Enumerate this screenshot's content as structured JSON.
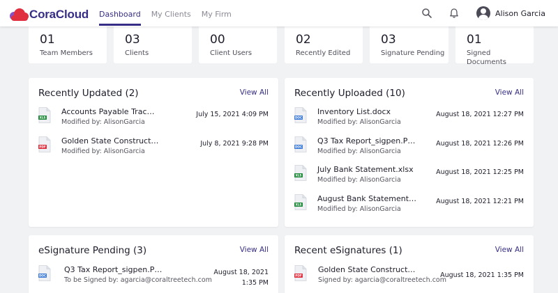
{
  "header": {
    "brand": "CoraCloud",
    "nav": [
      "Dashboard",
      "My Clients",
      "My Firm"
    ],
    "user_name": "Alison Garcia"
  },
  "stats": [
    {
      "value": "01",
      "label": "Team Members"
    },
    {
      "value": "03",
      "label": "Clients"
    },
    {
      "value": "00",
      "label": "Client Users"
    },
    {
      "value": "02",
      "label": "Recently Edited"
    },
    {
      "value": "03",
      "label": "Signature Pending"
    },
    {
      "value": "01",
      "label": "Signed Documents"
    }
  ],
  "recently_updated": {
    "title": "Recently Updated (2)",
    "view_all": "View All",
    "items": [
      {
        "name": "Accounts Payable Trac…",
        "sub": "Modified by: AlisonGarcia",
        "date": "July 15, 2021 4:09 PM",
        "type": "XLS"
      },
      {
        "name": "Golden State Construct…",
        "sub": "Modified by: AlisonGarcia",
        "date": "July 8, 2021 9:28 PM",
        "type": "PDF"
      }
    ]
  },
  "recently_uploaded": {
    "title": "Recently Uploaded (10)",
    "view_all": "View All",
    "items": [
      {
        "name": "Inventory List.docx",
        "sub": "Modified by: AlisonGarcia",
        "date": "August 18, 2021 12:27 PM",
        "type": "DOC"
      },
      {
        "name": "Q3 Tax Report_sigpen.P…",
        "sub": "Modified by: AlisonGarcia",
        "date": "August 18, 2021 12:26 PM",
        "type": "DOC"
      },
      {
        "name": "July Bank Statement.xlsx",
        "sub": "Modified by: AlisonGarcia",
        "date": "August 18, 2021 12:25 PM",
        "type": "XLS"
      },
      {
        "name": "August Bank Statement…",
        "sub": "Modified by: AlisonGarcia",
        "date": "August 18, 2021 12:21 PM",
        "type": "XLS"
      }
    ]
  },
  "esignature_pending": {
    "title": "eSignature Pending (3)",
    "view_all": "View All",
    "items": [
      {
        "name": "Q3 Tax Report_sigpen.P…",
        "sub": "To be Signed by: agarcia@coraltreetech.com",
        "date": "August 18, 2021 1:35 PM",
        "type": "DOC"
      }
    ]
  },
  "recent_esignatures": {
    "title": "Recent eSignatures (1)",
    "view_all": "View All",
    "items": [
      {
        "name": "Golden State Construct…",
        "sub": "Signed by: agarcia@coraltreetech.com",
        "date": "August 18, 2021 1:35 PM",
        "type": "PDF"
      }
    ]
  },
  "colors": {
    "brand": "#352d86",
    "logo_cloud_red": "#e0303f",
    "logo_cloud_purple": "#8a4fc0",
    "xls": "#1f8a3a",
    "pdf": "#e0303f",
    "doc": "#3d7bd6"
  },
  "icons": {
    "search": "search-icon",
    "notifications": "bell-icon",
    "avatar": "user-avatar-icon"
  }
}
